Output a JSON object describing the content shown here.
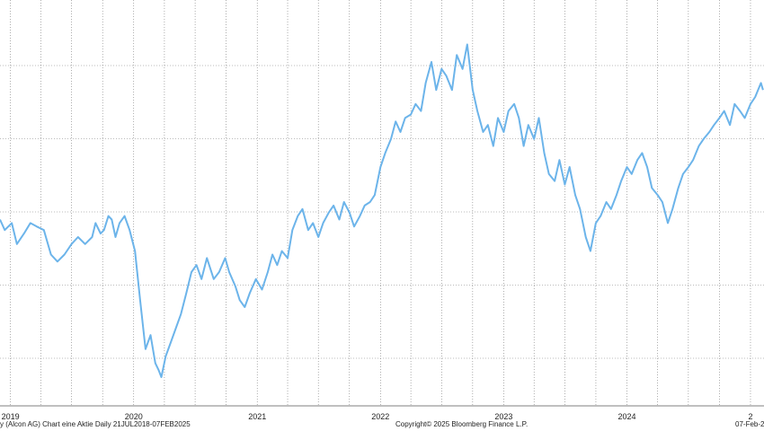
{
  "chart_data": {
    "type": "line",
    "title": "",
    "xlabel": "",
    "ylabel": "",
    "date_range": [
      "2018-07-21",
      "2025-02-07"
    ],
    "x_visible_range": [
      "2018-12-01",
      "2025-02-10"
    ],
    "ylim": [
      0,
      1
    ],
    "y_tick_labels": [],
    "grid": true,
    "legend": "none",
    "line_color": "#6cb4ea",
    "grid_color": "#7a7a7a",
    "x_tick_labels": [
      "2019",
      "2020",
      "2021",
      "2022",
      "2023",
      "2024",
      "2"
    ],
    "series": [
      {
        "x": [
          "2018-12-01",
          "2018-12-15",
          "2019-01-05",
          "2019-01-20",
          "2019-02-10",
          "2019-03-01",
          "2019-03-20",
          "2019-04-10",
          "2019-05-01",
          "2019-05-20",
          "2019-06-10",
          "2019-07-01",
          "2019-07-20",
          "2019-08-10",
          "2019-08-31",
          "2019-09-10",
          "2019-09-25",
          "2019-10-05",
          "2019-10-18",
          "2019-10-28",
          "2019-11-08",
          "2019-11-20",
          "2019-12-05",
          "2019-12-20",
          "2020-01-05",
          "2020-01-20",
          "2020-02-05",
          "2020-02-20",
          "2020-03-05",
          "2020-03-15",
          "2020-03-23",
          "2020-04-05",
          "2020-04-20",
          "2020-05-05",
          "2020-05-20",
          "2020-06-05",
          "2020-06-20",
          "2020-07-05",
          "2020-07-20",
          "2020-08-05",
          "2020-08-25",
          "2020-09-10",
          "2020-09-28",
          "2020-10-10",
          "2020-10-28",
          "2020-11-10",
          "2020-11-25",
          "2020-12-10",
          "2020-12-28",
          "2021-01-15",
          "2021-02-01",
          "2021-02-15",
          "2021-03-01",
          "2021-03-15",
          "2021-04-01",
          "2021-04-15",
          "2021-05-01",
          "2021-05-15",
          "2021-06-01",
          "2021-06-15",
          "2021-07-01",
          "2021-07-15",
          "2021-08-01",
          "2021-08-15",
          "2021-09-01",
          "2021-09-15",
          "2021-10-01",
          "2021-10-15",
          "2021-11-01",
          "2021-11-15",
          "2021-12-01",
          "2021-12-15",
          "2022-01-01",
          "2022-01-15",
          "2022-02-01",
          "2022-02-15",
          "2022-03-01",
          "2022-03-15",
          "2022-04-01",
          "2022-04-15",
          "2022-05-01",
          "2022-05-15",
          "2022-06-01",
          "2022-06-15",
          "2022-07-01",
          "2022-07-15",
          "2022-08-01",
          "2022-08-15",
          "2022-09-01",
          "2022-09-15",
          "2022-10-01",
          "2022-10-15",
          "2022-11-01",
          "2022-11-15",
          "2022-12-01",
          "2022-12-15",
          "2023-01-01",
          "2023-01-15",
          "2023-02-01",
          "2023-02-15",
          "2023-03-01",
          "2023-03-15",
          "2023-04-01",
          "2023-04-15",
          "2023-05-01",
          "2023-05-15",
          "2023-06-01",
          "2023-06-15",
          "2023-07-01",
          "2023-07-15",
          "2023-08-01",
          "2023-08-15",
          "2023-09-01",
          "2023-09-15",
          "2023-10-01",
          "2023-10-15",
          "2023-11-01",
          "2023-11-15",
          "2023-12-01",
          "2023-12-15",
          "2024-01-01",
          "2024-01-15",
          "2024-02-01",
          "2024-02-15",
          "2024-03-01",
          "2024-03-15",
          "2024-04-01",
          "2024-04-15",
          "2024-05-01",
          "2024-05-15",
          "2024-06-01",
          "2024-06-15",
          "2024-07-01",
          "2024-07-15",
          "2024-08-01",
          "2024-08-15",
          "2024-09-01",
          "2024-09-15",
          "2024-10-01",
          "2024-10-15",
          "2024-11-01",
          "2024-11-15",
          "2024-12-01",
          "2024-12-15",
          "2025-01-01",
          "2025-01-15",
          "2025-02-01",
          "2025-02-07"
        ],
        "values": [
          0.45,
          0.42,
          0.44,
          0.38,
          0.41,
          0.44,
          0.43,
          0.42,
          0.35,
          0.33,
          0.35,
          0.38,
          0.4,
          0.38,
          0.4,
          0.44,
          0.41,
          0.42,
          0.46,
          0.45,
          0.4,
          0.44,
          0.46,
          0.42,
          0.36,
          0.22,
          0.08,
          0.12,
          0.04,
          0.02,
          0.0,
          0.06,
          0.1,
          0.14,
          0.18,
          0.24,
          0.3,
          0.32,
          0.28,
          0.34,
          0.28,
          0.3,
          0.34,
          0.3,
          0.26,
          0.22,
          0.2,
          0.24,
          0.28,
          0.25,
          0.3,
          0.35,
          0.32,
          0.36,
          0.34,
          0.42,
          0.46,
          0.48,
          0.42,
          0.44,
          0.4,
          0.44,
          0.47,
          0.49,
          0.45,
          0.5,
          0.47,
          0.43,
          0.46,
          0.49,
          0.5,
          0.52,
          0.6,
          0.64,
          0.68,
          0.73,
          0.7,
          0.74,
          0.75,
          0.78,
          0.76,
          0.84,
          0.9,
          0.82,
          0.88,
          0.86,
          0.82,
          0.92,
          0.88,
          0.95,
          0.82,
          0.76,
          0.7,
          0.72,
          0.66,
          0.74,
          0.7,
          0.76,
          0.78,
          0.74,
          0.66,
          0.72,
          0.68,
          0.74,
          0.64,
          0.58,
          0.56,
          0.62,
          0.55,
          0.6,
          0.52,
          0.48,
          0.4,
          0.36,
          0.44,
          0.46,
          0.5,
          0.48,
          0.52,
          0.56,
          0.6,
          0.58,
          0.62,
          0.64,
          0.6,
          0.54,
          0.52,
          0.5,
          0.44,
          0.48,
          0.54,
          0.58,
          0.6,
          0.62,
          0.66,
          0.68,
          0.7,
          0.72,
          0.74,
          0.76,
          0.72,
          0.78,
          0.76,
          0.74,
          0.78,
          0.8,
          0.84,
          0.82
        ]
      }
    ]
  },
  "footer": {
    "left": "y (Alcon AG) Chart eine Aktie  Daily 21JUL2018-07FEB2025",
    "center": "Copyright© 2025 Bloomberg Finance L.P.",
    "right": "07-Feb-2("
  }
}
